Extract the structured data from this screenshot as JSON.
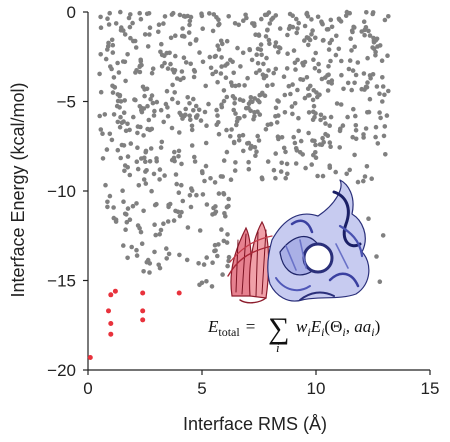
{
  "chart_data": {
    "type": "scatter",
    "title": "",
    "xlabel": "Interface RMS (Å)",
    "ylabel": "Interface Energy (kcal/mol)",
    "xlim": [
      0,
      15
    ],
    "ylim": [
      -20,
      0
    ],
    "x_ticks": [
      0,
      5,
      10,
      15
    ],
    "y_ticks": [
      0,
      -5,
      -10,
      -15,
      -20
    ],
    "grid": false,
    "annotation": {
      "formula": "E_total = Σ_i w_i E_i(Θ_i, aa_i)",
      "formula_parts": {
        "lhs": "E",
        "lhs_sub": "total",
        "eq": "=",
        "sum": "∑",
        "sum_index": "i",
        "rhs_w": "w",
        "rhs_w_sub": "i",
        "rhs_E": "E",
        "rhs_E_sub": "i",
        "open": "(",
        "theta": "Θ",
        "theta_sub": "i",
        "comma": ", ",
        "aa": "aa",
        "aa_sub": "i",
        "close": ")"
      },
      "inset_image": "protein-complex-ribbon (red and blue chains)"
    },
    "series": [
      {
        "color": "#808080",
        "seed": 7,
        "count": 780,
        "x_range": [
          0.5,
          13.2
        ],
        "y_range": [
          -15.5,
          0
        ]
      },
      {
        "color": "#e8323c",
        "points": [
          [
            0.1,
            -19.3
          ],
          [
            1.0,
            -15.8
          ],
          [
            1.2,
            -15.6
          ],
          [
            0.9,
            -16.7
          ],
          [
            1.0,
            -17.4
          ],
          [
            1.0,
            -18.0
          ],
          [
            2.4,
            -15.7
          ],
          [
            2.4,
            -16.7
          ],
          [
            2.4,
            -17.2
          ],
          [
            4.0,
            -15.7
          ]
        ]
      }
    ]
  }
}
